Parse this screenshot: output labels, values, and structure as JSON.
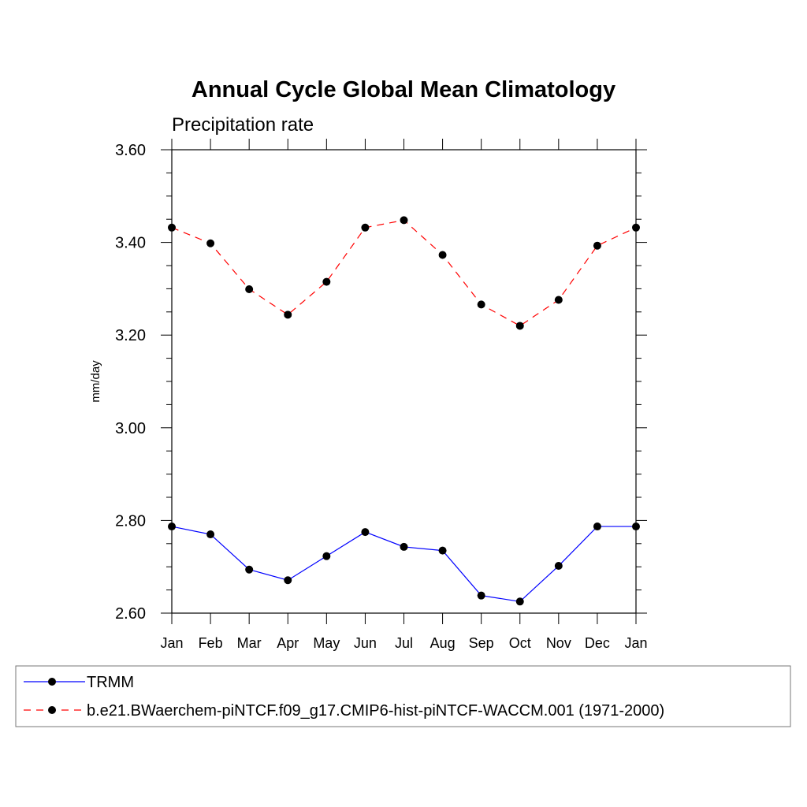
{
  "chart_data": {
    "type": "line",
    "title": "Annual Cycle Global Mean Climatology",
    "subtitle": "Precipitation rate",
    "xlabel": "",
    "ylabel": "mm/day",
    "ylim": [
      2.6,
      3.6
    ],
    "yticks": [
      "2.60",
      "2.80",
      "3.00",
      "3.20",
      "3.40",
      "3.60"
    ],
    "categories": [
      "Jan",
      "Feb",
      "Mar",
      "Apr",
      "May",
      "Jun",
      "Jul",
      "Aug",
      "Sep",
      "Oct",
      "Nov",
      "Dec",
      "Jan"
    ],
    "series": [
      {
        "name": "TRMM",
        "color": "#0000ff",
        "dash": "solid",
        "values": [
          2.787,
          2.77,
          2.694,
          2.671,
          2.723,
          2.775,
          2.743,
          2.735,
          2.638,
          2.625,
          2.702,
          2.787,
          2.787
        ]
      },
      {
        "name": "b.e21.BWaerchem-piNTCF.f09_g17.CMIP6-hist-piNTCF-WACCM.001 (1971-2000)",
        "color": "#ff0000",
        "dash": "dashed",
        "values": [
          3.432,
          3.398,
          3.299,
          3.244,
          3.315,
          3.432,
          3.448,
          3.373,
          3.266,
          3.22,
          3.276,
          3.393,
          3.432
        ]
      }
    ],
    "marker_color": "#000000",
    "legend_position": "bottom"
  }
}
